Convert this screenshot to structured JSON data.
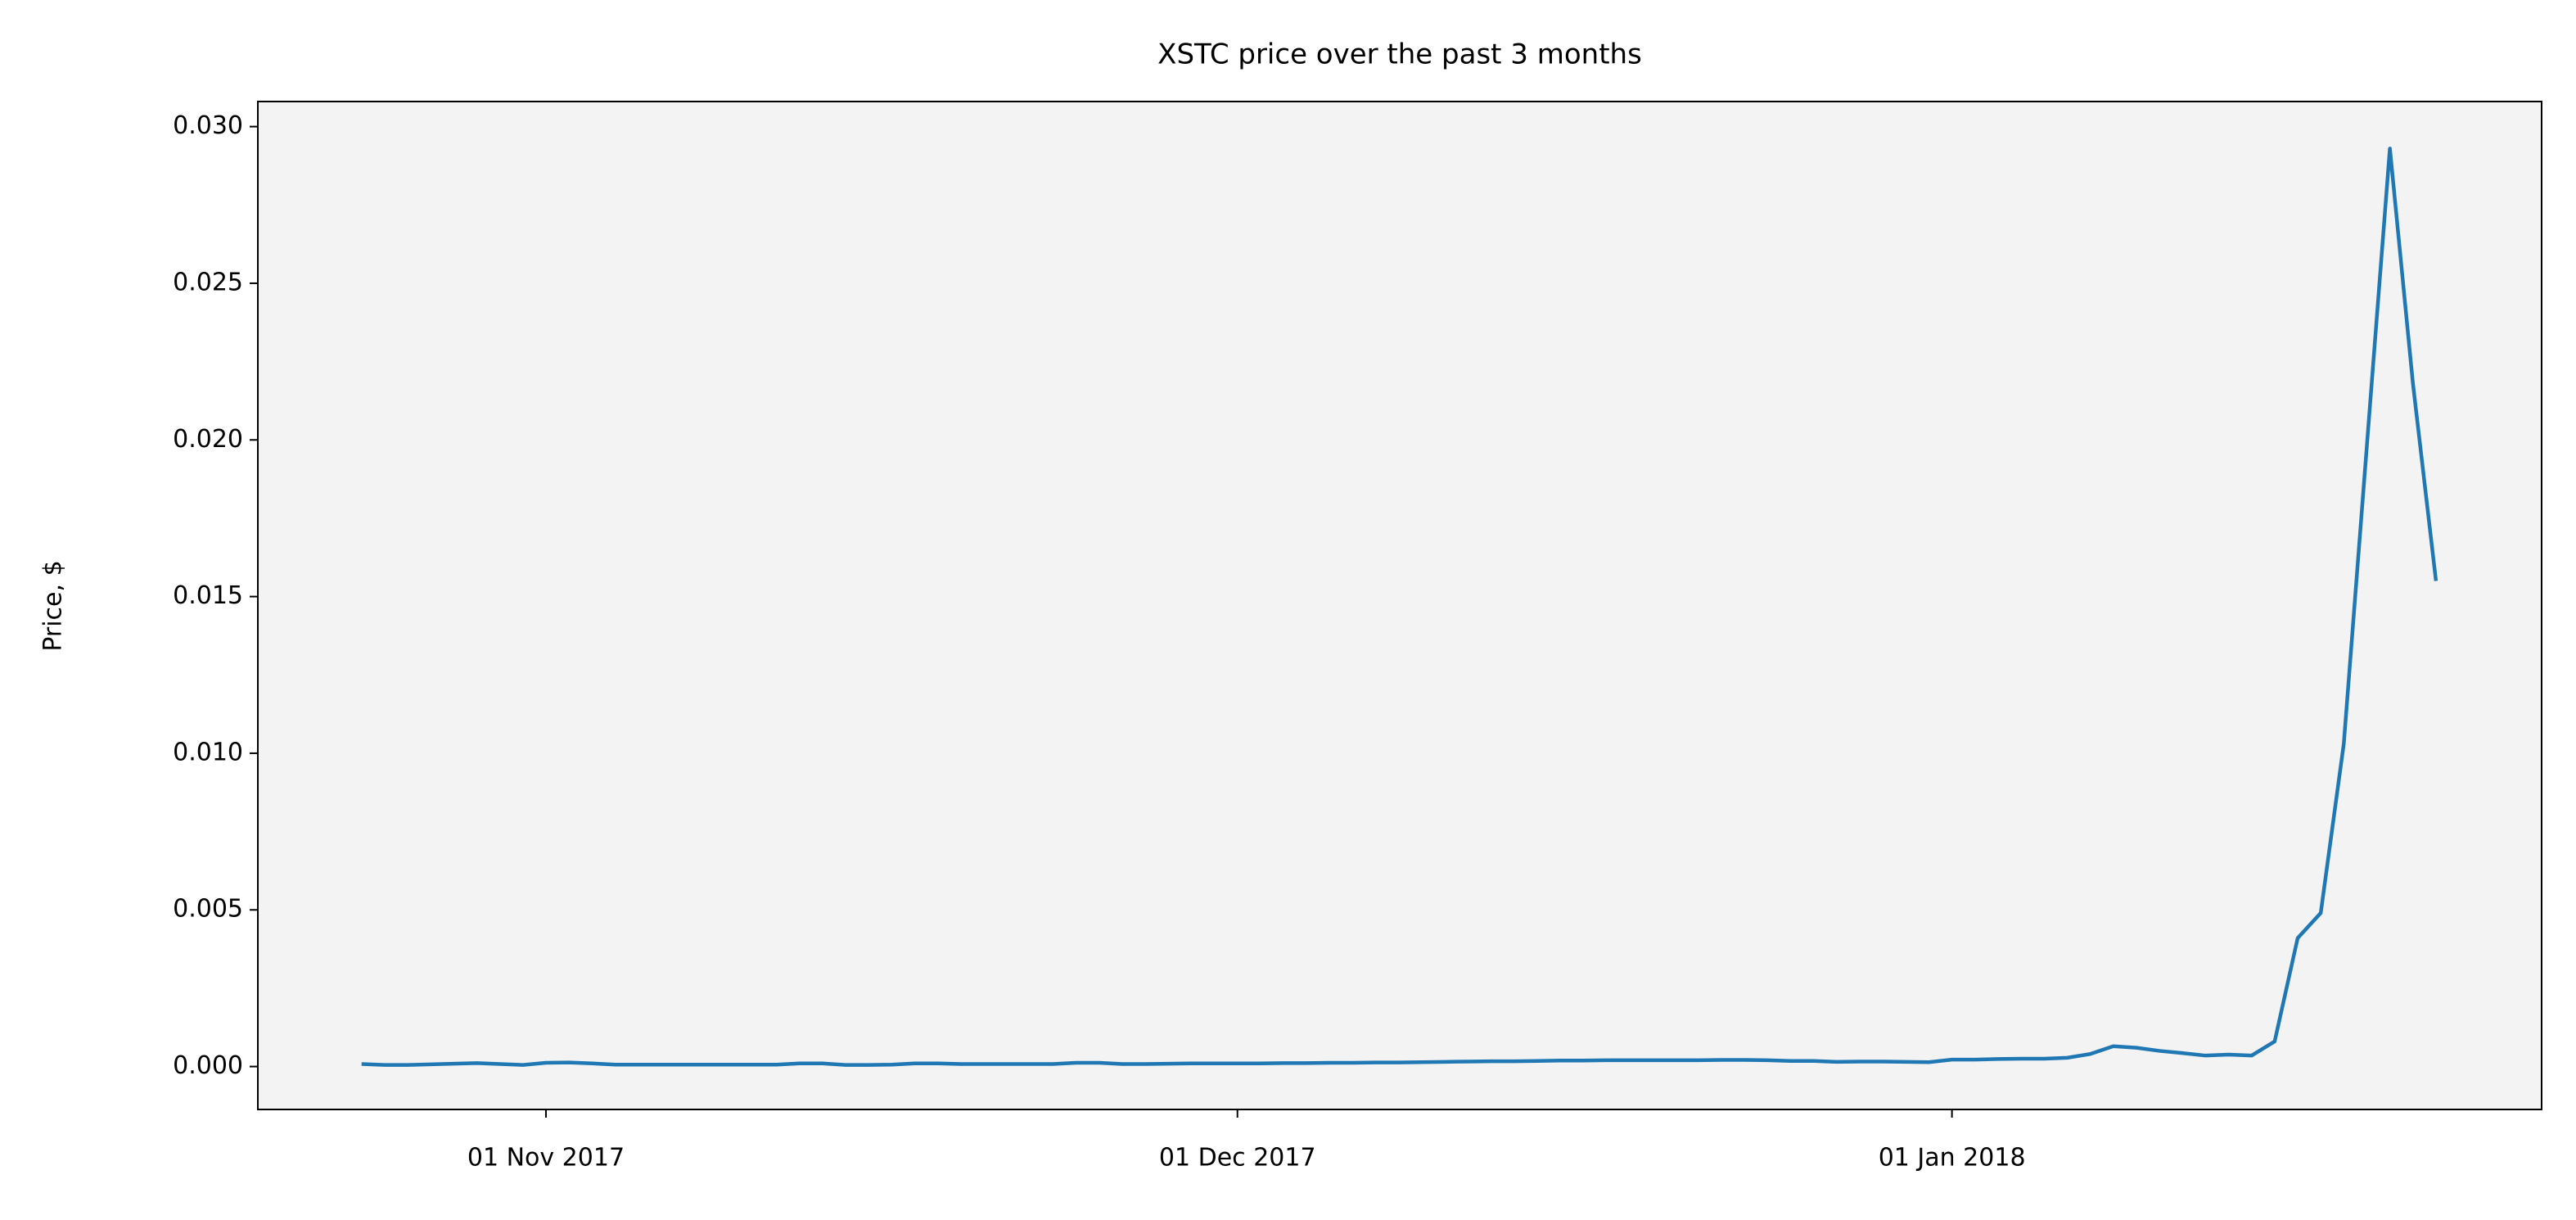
{
  "chart_data": {
    "type": "line",
    "title": "XSTC price over the past 3 months",
    "y_label": "Price, $",
    "x": [
      "2017-10-24",
      "2017-10-25",
      "2017-10-26",
      "2017-10-27",
      "2017-10-28",
      "2017-10-29",
      "2017-10-30",
      "2017-10-31",
      "2017-11-01",
      "2017-11-02",
      "2017-11-03",
      "2017-11-04",
      "2017-11-05",
      "2017-11-06",
      "2017-11-07",
      "2017-11-08",
      "2017-11-09",
      "2017-11-10",
      "2017-11-11",
      "2017-11-12",
      "2017-11-13",
      "2017-11-14",
      "2017-11-15",
      "2017-11-16",
      "2017-11-17",
      "2017-11-18",
      "2017-11-19",
      "2017-11-20",
      "2017-11-21",
      "2017-11-22",
      "2017-11-23",
      "2017-11-24",
      "2017-11-25",
      "2017-11-26",
      "2017-11-27",
      "2017-11-28",
      "2017-11-29",
      "2017-11-30",
      "2017-12-01",
      "2017-12-02",
      "2017-12-03",
      "2017-12-04",
      "2017-12-05",
      "2017-12-06",
      "2017-12-07",
      "2017-12-08",
      "2017-12-09",
      "2017-12-10",
      "2017-12-11",
      "2017-12-12",
      "2017-12-13",
      "2017-12-14",
      "2017-12-15",
      "2017-12-16",
      "2017-12-17",
      "2017-12-18",
      "2017-12-19",
      "2017-12-20",
      "2017-12-21",
      "2017-12-22",
      "2017-12-23",
      "2017-12-24",
      "2017-12-25",
      "2017-12-26",
      "2017-12-27",
      "2017-12-28",
      "2017-12-29",
      "2017-12-30",
      "2017-12-31",
      "2018-01-01",
      "2018-01-02",
      "2018-01-03",
      "2018-01-04",
      "2018-01-05",
      "2018-01-06",
      "2018-01-07",
      "2018-01-08",
      "2018-01-09",
      "2018-01-10",
      "2018-01-11",
      "2018-01-12",
      "2018-01-13",
      "2018-01-14",
      "2018-01-15",
      "2018-01-16",
      "2018-01-17",
      "2018-01-18",
      "2018-01-19",
      "2018-01-20",
      "2018-01-21",
      "2018-01-22"
    ],
    "series": [
      {
        "name": "XSTC",
        "color": "#1f77b4",
        "values": [
          8e-05,
          5e-05,
          5e-05,
          7e-05,
          9e-05,
          0.00011,
          8e-05,
          5e-05,
          0.00012,
          0.00013,
          0.0001,
          6e-05,
          6e-05,
          6e-05,
          6e-05,
          6e-05,
          6e-05,
          6e-05,
          6e-05,
          0.0001,
          0.0001,
          5e-05,
          5e-05,
          6e-05,
          0.0001,
          0.0001,
          8e-05,
          8e-05,
          8e-05,
          8e-05,
          8e-05,
          0.00012,
          0.00012,
          8e-05,
          8e-05,
          9e-05,
          0.0001,
          0.0001,
          0.0001,
          0.0001,
          0.00011,
          0.00011,
          0.00012,
          0.00012,
          0.00013,
          0.00013,
          0.00014,
          0.00015,
          0.00016,
          0.00017,
          0.00017,
          0.00018,
          0.00019,
          0.00019,
          0.0002,
          0.0002,
          0.0002,
          0.0002,
          0.0002,
          0.00021,
          0.00021,
          0.0002,
          0.00018,
          0.00018,
          0.00015,
          0.00016,
          0.00016,
          0.00015,
          0.00014,
          0.00022,
          0.00022,
          0.00024,
          0.00025,
          0.00025,
          0.00028,
          0.0004,
          0.00065,
          0.0006,
          0.0005,
          0.00043,
          0.00035,
          0.00038,
          0.00035,
          0.0008,
          0.0041,
          0.0049,
          0.0103,
          0.0198,
          0.0293,
          0.0218,
          0.0155
        ]
      }
    ],
    "xlim": [
      "2017-10-19T12:00",
      "2018-01-26T14:00"
    ],
    "xticks": [
      {
        "value": "2017-11-01",
        "label": "01 Nov 2017"
      },
      {
        "value": "2017-12-01",
        "label": "01 Dec 2017"
      },
      {
        "value": "2018-01-01",
        "label": "01 Jan 2018"
      }
    ],
    "ylim": [
      -0.00137,
      0.0308
    ],
    "yticks": [
      {
        "value": 0,
        "label": "0.000"
      },
      0.005,
      {
        "value": 0.01,
        "label": "0.010"
      },
      0.015,
      {
        "value": 0.02,
        "label": "0.020"
      },
      0.025,
      {
        "value": 0.03,
        "label": "0.030"
      }
    ],
    "background": "#f3f3f3",
    "grid": false
  }
}
